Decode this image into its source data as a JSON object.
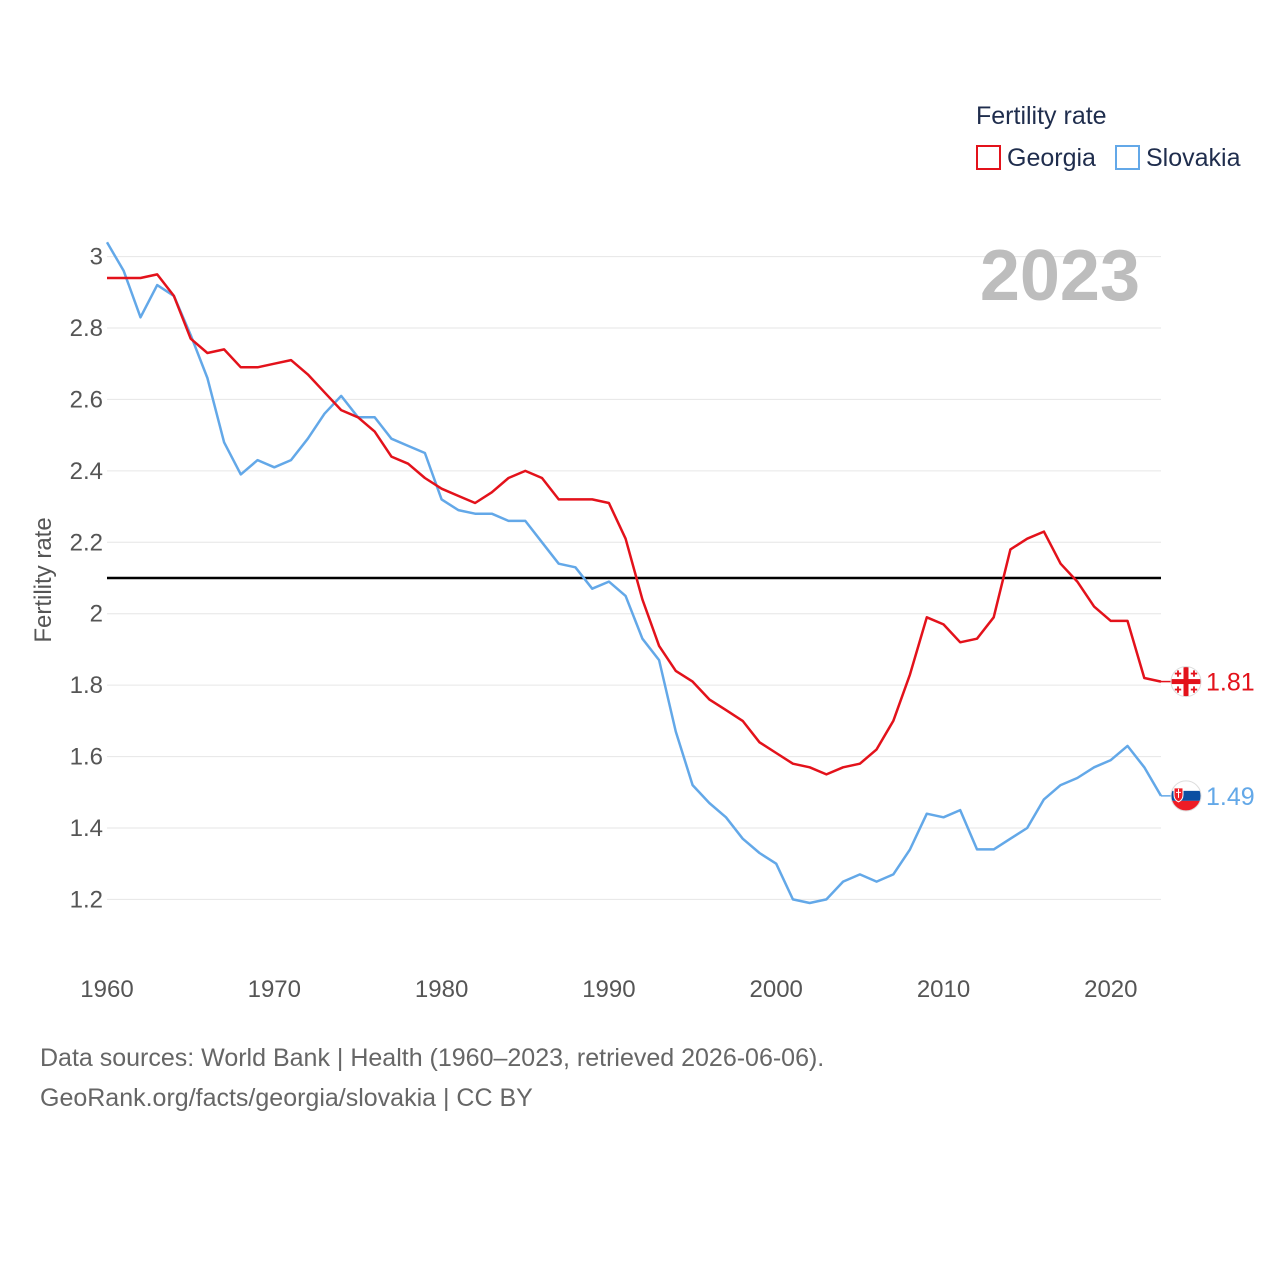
{
  "chart_data": {
    "type": "line",
    "year_label": "2023",
    "ylabel": "Fertility rate",
    "xlabel": "",
    "xlim": [
      1960,
      2023
    ],
    "ylim": [
      1.12,
      3.08
    ],
    "x_ticks": [
      1960,
      1970,
      1980,
      1990,
      2000,
      2010,
      2020
    ],
    "x_tick_labels": [
      "1960",
      "1970",
      "1980",
      "1990",
      "2000",
      "2010",
      "2020"
    ],
    "y_ticks": [
      1.2,
      1.4,
      1.6,
      1.8,
      2.0,
      2.2,
      2.4,
      2.6,
      2.8,
      3.0
    ],
    "y_tick_labels": [
      "1.2",
      "1.4",
      "1.6",
      "1.8",
      "2",
      "2.2",
      "2.4",
      "2.6",
      "2.8",
      "3"
    ],
    "reference_line": 2.1,
    "legend": {
      "title": "Fertility rate",
      "position": "top-right"
    },
    "x": [
      1960,
      1961,
      1962,
      1963,
      1964,
      1965,
      1966,
      1967,
      1968,
      1969,
      1970,
      1971,
      1972,
      1973,
      1974,
      1975,
      1976,
      1977,
      1978,
      1979,
      1980,
      1981,
      1982,
      1983,
      1984,
      1985,
      1986,
      1987,
      1988,
      1989,
      1990,
      1991,
      1992,
      1993,
      1994,
      1995,
      1996,
      1997,
      1998,
      1999,
      2000,
      2001,
      2002,
      2003,
      2004,
      2005,
      2006,
      2007,
      2008,
      2009,
      2010,
      2011,
      2012,
      2013,
      2014,
      2015,
      2016,
      2017,
      2018,
      2019,
      2020,
      2021,
      2022,
      2023
    ],
    "series": [
      {
        "name": "Georgia",
        "color": "#e3121b",
        "end_label": "1.81",
        "flag": "georgia-flag",
        "values": [
          2.94,
          2.94,
          2.94,
          2.95,
          2.89,
          2.77,
          2.73,
          2.74,
          2.69,
          2.69,
          2.7,
          2.71,
          2.67,
          2.62,
          2.57,
          2.55,
          2.51,
          2.44,
          2.42,
          2.38,
          2.35,
          2.33,
          2.31,
          2.34,
          2.38,
          2.4,
          2.38,
          2.32,
          2.32,
          2.32,
          2.31,
          2.21,
          2.04,
          1.91,
          1.84,
          1.81,
          1.76,
          1.73,
          1.7,
          1.64,
          1.61,
          1.58,
          1.57,
          1.55,
          1.57,
          1.58,
          1.62,
          1.7,
          1.83,
          1.99,
          1.97,
          1.92,
          1.93,
          1.99,
          2.18,
          2.21,
          2.23,
          2.14,
          2.09,
          2.02,
          1.98,
          1.98,
          1.82,
          1.81
        ]
      },
      {
        "name": "Slovakia",
        "color": "#63a8e8",
        "end_label": "1.49",
        "flag": "slovakia-flag",
        "values": [
          3.04,
          2.96,
          2.83,
          2.92,
          2.89,
          2.78,
          2.66,
          2.48,
          2.39,
          2.43,
          2.41,
          2.43,
          2.49,
          2.56,
          2.61,
          2.55,
          2.55,
          2.49,
          2.47,
          2.45,
          2.32,
          2.29,
          2.28,
          2.28,
          2.26,
          2.26,
          2.2,
          2.14,
          2.13,
          2.07,
          2.09,
          2.05,
          1.93,
          1.87,
          1.67,
          1.52,
          1.47,
          1.43,
          1.37,
          1.33,
          1.3,
          1.2,
          1.19,
          1.2,
          1.25,
          1.27,
          1.25,
          1.27,
          1.34,
          1.44,
          1.43,
          1.45,
          1.34,
          1.34,
          1.37,
          1.4,
          1.48,
          1.52,
          1.54,
          1.57,
          1.59,
          1.63,
          1.57,
          1.49
        ]
      }
    ]
  },
  "footer": {
    "sources": "Data sources: World Bank | Health (1960–2023, retrieved 2026-06-06).",
    "credit": "GeoRank.org/facts/georgia/slovakia | CC BY"
  }
}
